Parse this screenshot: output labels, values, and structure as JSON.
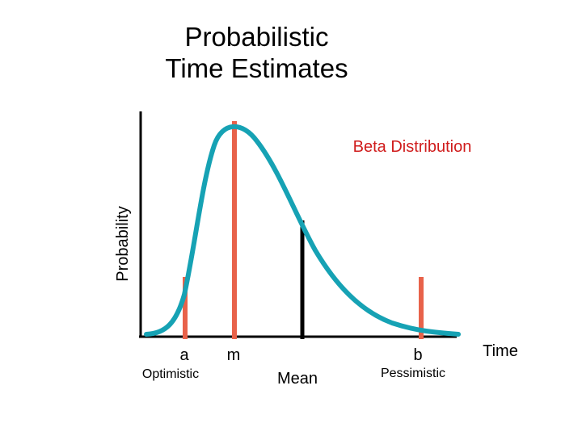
{
  "title_line1": "Probabilistic",
  "title_line2": "Time Estimates",
  "curve_label": "Beta Distribution",
  "y_axis_label": "Probability",
  "x_axis_label": "Time",
  "markers": {
    "a": {
      "letter": "a",
      "name": "Optimistic"
    },
    "m": {
      "letter": "m"
    },
    "mean": {
      "name": "Mean"
    },
    "b": {
      "letter": "b",
      "name": "Pessimistic"
    }
  },
  "colors": {
    "curve": "#16a2b4",
    "estimate_bars": "#e8624a",
    "mean_bar": "#000000",
    "curve_label": "#d01c1c",
    "axes": "#000000"
  }
}
